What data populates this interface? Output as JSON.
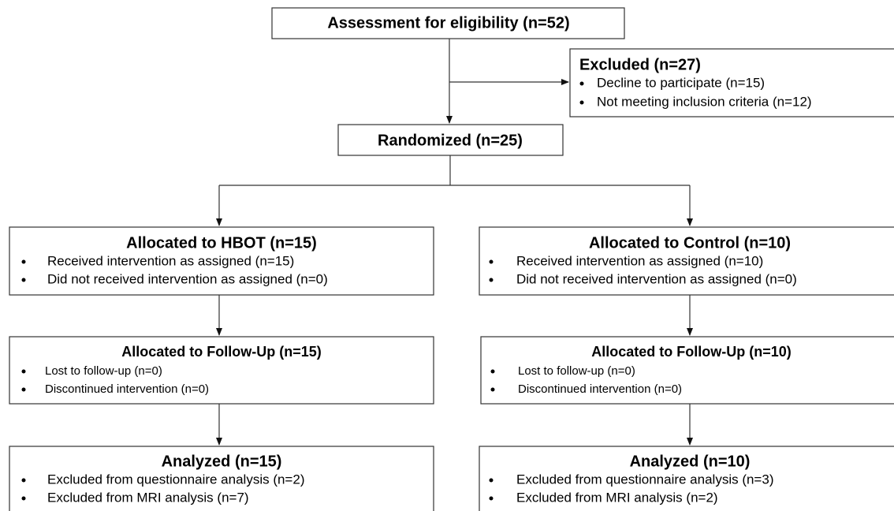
{
  "nodes": [
    {
      "title": "Assessment for eligibility (n=52)"
    },
    {
      "title": "Excluded (n=27)",
      "items": [
        "Decline to participate (n=15)",
        "Not meeting inclusion criteria (n=12)"
      ]
    },
    {
      "title": "Randomized (n=25)"
    },
    {
      "title": "Allocated to HBOT (n=15)",
      "items": [
        "Received intervention as assigned (n=15)",
        "Did not received intervention as assigned (n=0)"
      ]
    },
    {
      "title": "Allocated to Control (n=10)",
      "items": [
        "Received intervention as assigned (n=10)",
        "Did not received intervention as assigned (n=0)"
      ]
    },
    {
      "title": "Allocated to Follow-Up (n=15)",
      "items": [
        "Lost to follow-up (n=0)",
        "Discontinued intervention (n=0)"
      ]
    },
    {
      "title": "Allocated to Follow-Up (n=10)",
      "items": [
        "Lost to follow-up (n=0)",
        "Discontinued intervention (n=0)"
      ]
    },
    {
      "title": "Analyzed (n=15)",
      "items": [
        "Excluded from questionnaire analysis (n=2)",
        "Excluded from MRI analysis (n=7)"
      ]
    },
    {
      "title": "Analyzed (n=10)",
      "items": [
        "Excluded from questionnaire analysis (n=3)",
        "Excluded from MRI analysis (n=2)"
      ]
    }
  ]
}
